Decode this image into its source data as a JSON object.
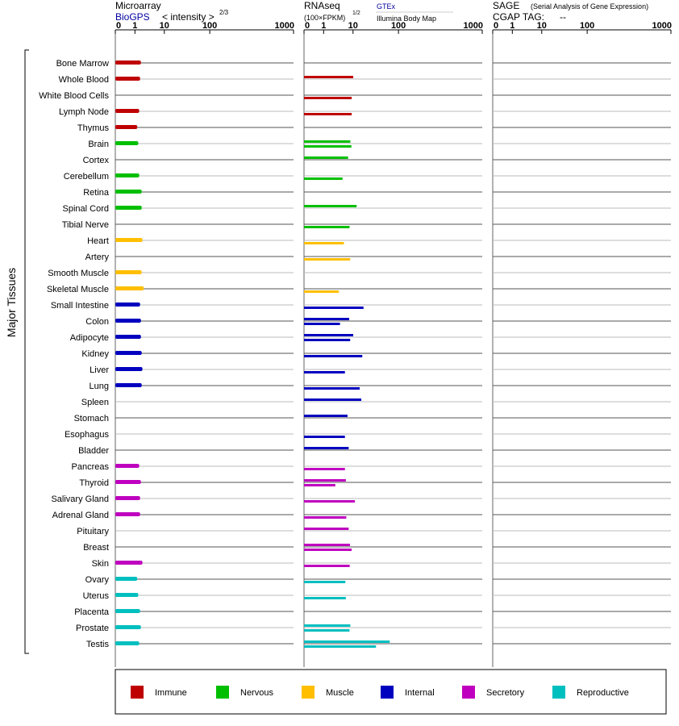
{
  "headers": {
    "microarray": {
      "title": "Microarray",
      "source": "BioGPS",
      "unit": "< intensity >",
      "exponent": "2/3",
      "ticks": [
        "0",
        "1",
        "10",
        "100",
        "1000"
      ]
    },
    "rnaseq": {
      "title": "RNAseq",
      "unit": "(100×FPKM)",
      "exponent": "1/2",
      "source_gtex": "GTEx",
      "source_ibm": "Illumina Body Map",
      "ticks": [
        "0",
        "1",
        "10",
        "100",
        "1000"
      ]
    },
    "sage": {
      "title": "SAGE",
      "subtitle": "(Serial Analysis of Gene Expression)",
      "tag_label": "CGAP TAG:",
      "tag_value": "--",
      "ticks": [
        "0",
        "1",
        "10",
        "100",
        "1000"
      ]
    }
  },
  "colors": {
    "Immune": "#bf0000",
    "Nervous": "#00bf00",
    "Muscle": "#ffbf00",
    "Internal": "#0000bf",
    "Secretory": "#bf00bf",
    "Reproductive": "#00bfbf"
  },
  "legend": [
    "Immune",
    "Nervous",
    "Muscle",
    "Internal",
    "Secretory",
    "Reproductive"
  ],
  "chart_data": {
    "type": "bar",
    "orientation": "horizontal",
    "group_label": "Major Tissues",
    "scale_note": "axis ticks 0,1,10,100,1000 on transformed scale",
    "categories": [
      "Bone Marrow",
      "Whole Blood",
      "White Blood Cells",
      "Lymph Node",
      "Thymus",
      "Brain",
      "Cortex",
      "Cerebellum",
      "Retina",
      "Spinal Cord",
      "Tibial Nerve",
      "Heart",
      "Artery",
      "Smooth Muscle",
      "Skeletal Muscle",
      "Small Intestine",
      "Colon",
      "Adipocyte",
      "Kidney",
      "Liver",
      "Lung",
      "Spleen",
      "Stomach",
      "Esophagus",
      "Bladder",
      "Pancreas",
      "Thyroid",
      "Salivary Gland",
      "Adrenal Gland",
      "Pituitary",
      "Breast",
      "Skin",
      "Ovary",
      "Uterus",
      "Placenta",
      "Prostate",
      "Testis"
    ],
    "system": [
      "Immune",
      "Immune",
      "Immune",
      "Immune",
      "Immune",
      "Nervous",
      "Nervous",
      "Nervous",
      "Nervous",
      "Nervous",
      "Nervous",
      "Muscle",
      "Muscle",
      "Muscle",
      "Muscle",
      "Internal",
      "Internal",
      "Internal",
      "Internal",
      "Internal",
      "Internal",
      "Internal",
      "Internal",
      "Internal",
      "Internal",
      "Secretory",
      "Secretory",
      "Secretory",
      "Secretory",
      "Secretory",
      "Secretory",
      "Secretory",
      "Reproductive",
      "Reproductive",
      "Reproductive",
      "Reproductive",
      "Reproductive"
    ],
    "series": [
      {
        "name": "BioGPS",
        "values": [
          1.6,
          1.5,
          null,
          1.4,
          1.2,
          1.3,
          null,
          1.4,
          1.7,
          1.7,
          null,
          1.8,
          null,
          1.7,
          2.0,
          1.5,
          1.6,
          1.6,
          1.7,
          1.8,
          1.7,
          null,
          null,
          null,
          null,
          1.4,
          1.6,
          1.5,
          1.5,
          null,
          null,
          1.8,
          1.2,
          1.3,
          1.5,
          1.6,
          1.4
        ]
      },
      {
        "name": "GTEx",
        "values": [
          null,
          10.1,
          null,
          null,
          null,
          8.1,
          6.8,
          null,
          null,
          12.0,
          null,
          null,
          null,
          null,
          null,
          null,
          7.4,
          10.1,
          null,
          null,
          null,
          15.2,
          6.5,
          null,
          7.1,
          null,
          5.7,
          null,
          null,
          7.1,
          7.9,
          null,
          null,
          null,
          null,
          8.1,
          64.0
        ]
      },
      {
        "name": "Illumina Body Map",
        "values": [
          null,
          null,
          9.0,
          9.0,
          null,
          8.8,
          null,
          4.4,
          null,
          null,
          7.6,
          4.9,
          8.0,
          null,
          3.3,
          17.0,
          3.6,
          8.0,
          16.0,
          5.3,
          14.0,
          null,
          null,
          5.3,
          null,
          5.3,
          2.5,
          11.0,
          5.9,
          null,
          9.0,
          7.7,
          5.5,
          5.7,
          null,
          7.6,
          32.0
        ]
      }
    ]
  }
}
